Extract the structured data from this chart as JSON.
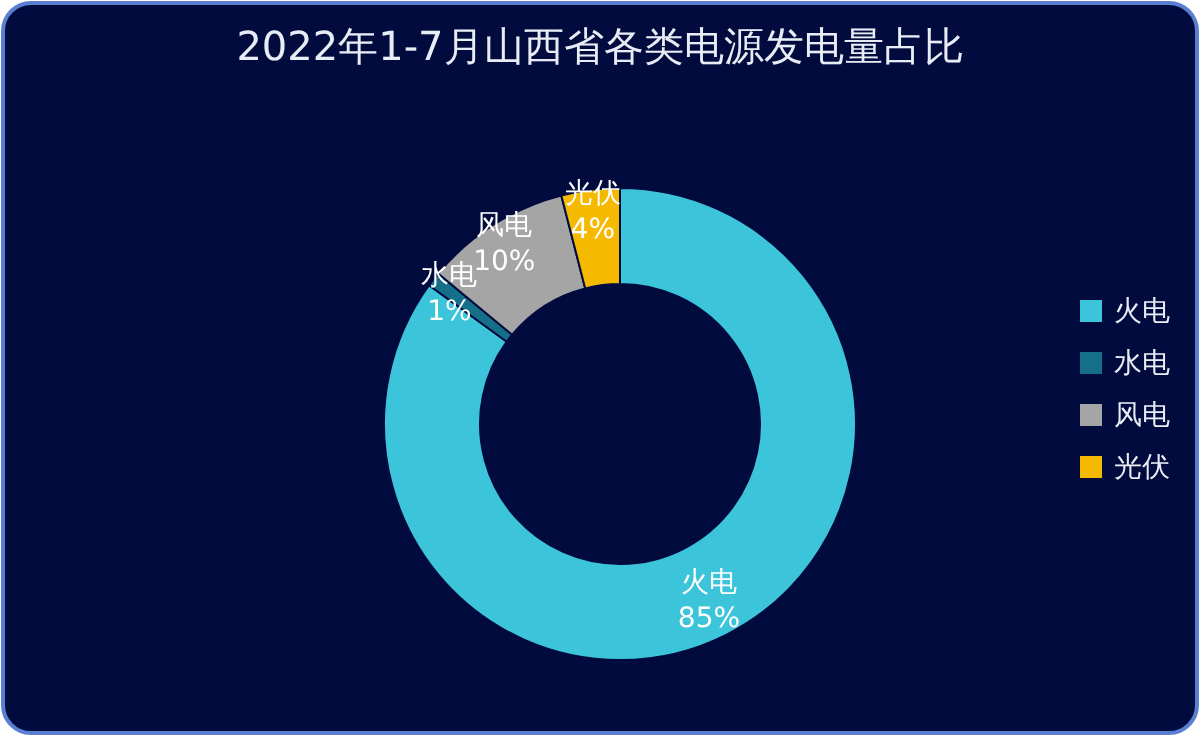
{
  "chart_data": {
    "type": "donut",
    "title": "2022年1-7月山西省各类电源发电量占比",
    "categories": [
      "火电",
      "水电",
      "风电",
      "光伏"
    ],
    "values": [
      85,
      1,
      10,
      4
    ],
    "value_labels": [
      "85%",
      "1%",
      "10%",
      "4%"
    ],
    "colors": [
      "#3cc5da",
      "#166f88",
      "#a5a5a5",
      "#f5b900"
    ],
    "legend": "right"
  }
}
